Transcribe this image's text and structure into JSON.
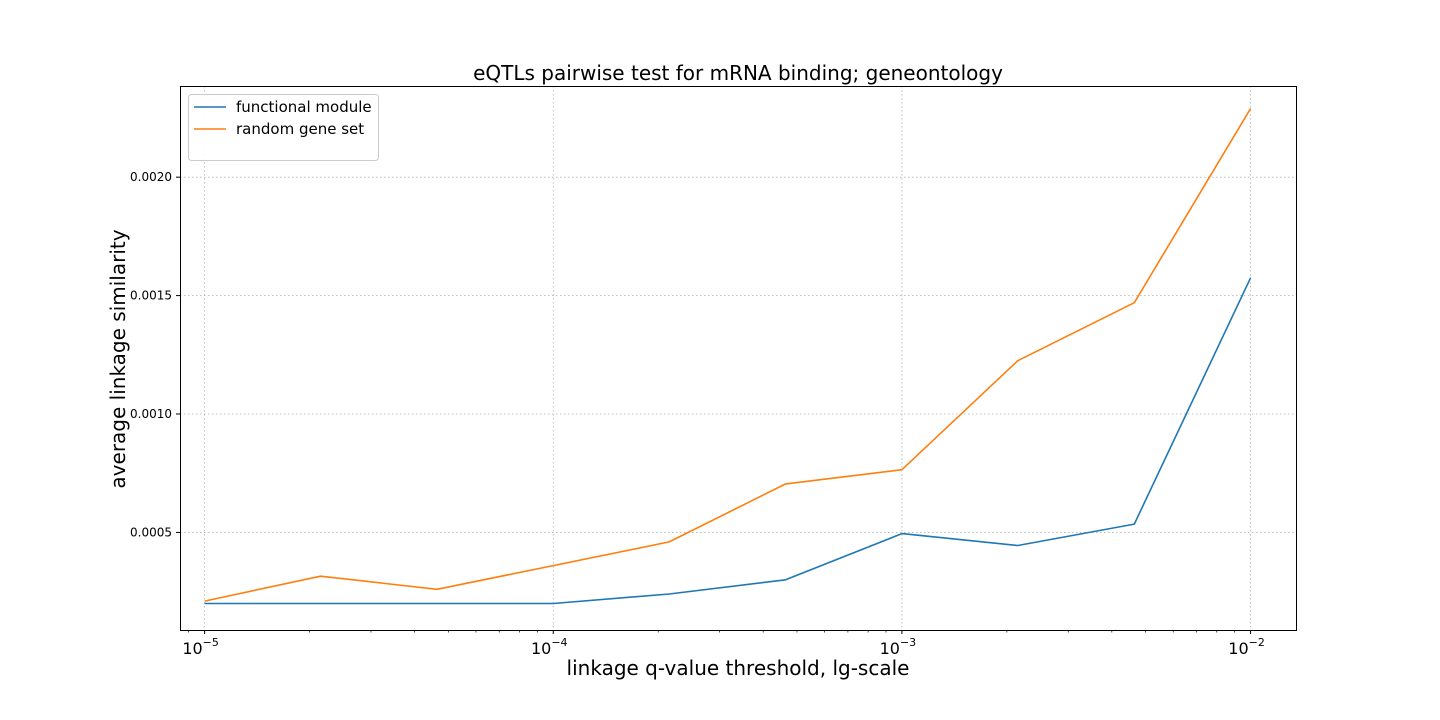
{
  "chart_data": {
    "type": "line",
    "title": "eQTLs pairwise test for mRNA binding; geneontology",
    "xlabel": "linkage q-value threshold, lg-scale",
    "ylabel": "average linkage similarity",
    "xscale": "log",
    "xlim": [
      8.5e-06,
      0.0135
    ],
    "ylim": [
      8.8e-05,
      0.002385
    ],
    "x": [
      1e-05,
      2.15e-05,
      4.64e-05,
      0.0001,
      0.000215,
      0.000464,
      0.001,
      0.00215,
      0.00464,
      0.01
    ],
    "x_ticks": [
      {
        "base": "10",
        "exp": "−5",
        "value": 1e-05
      },
      {
        "base": "10",
        "exp": "−4",
        "value": 0.0001
      },
      {
        "base": "10",
        "exp": "−3",
        "value": 0.001
      },
      {
        "base": "10",
        "exp": "−2",
        "value": 0.01
      }
    ],
    "y_ticks": [
      {
        "label": "0.0005",
        "value": 0.0005
      },
      {
        "label": "0.0010",
        "value": 0.001
      },
      {
        "label": "0.0015",
        "value": 0.0015
      },
      {
        "label": "0.0020",
        "value": 0.002
      }
    ],
    "grid": true,
    "legend_position": "top-left",
    "series": [
      {
        "name": "functional module",
        "color": "#1f77b4",
        "values": [
          0.0002,
          0.0002,
          0.0002,
          0.0002,
          0.00024,
          0.0003,
          0.000495,
          0.000445,
          0.000535,
          0.001575
        ]
      },
      {
        "name": "random gene set",
        "color": "#ff7f0e",
        "values": [
          0.00021,
          0.000315,
          0.00026,
          0.00036,
          0.00046,
          0.000705,
          0.000765,
          0.001225,
          0.00147,
          0.00229
        ]
      }
    ]
  }
}
